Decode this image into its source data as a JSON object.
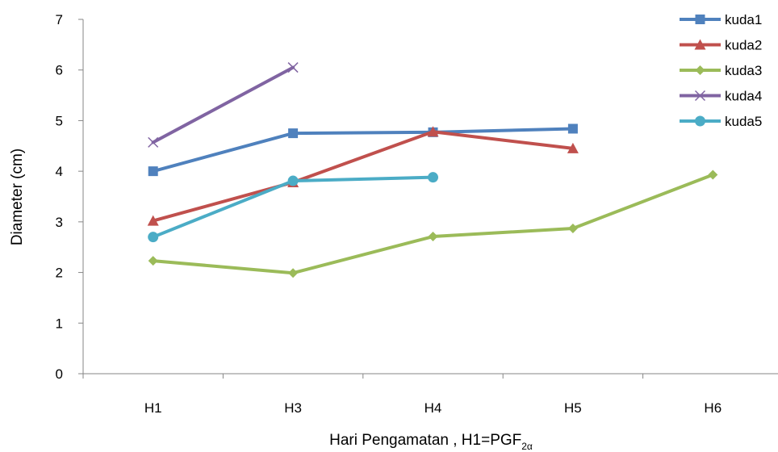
{
  "chart_data": {
    "type": "line",
    "categories": [
      "H1",
      "H3",
      "H4",
      "H5",
      "H6"
    ],
    "ylim": [
      0,
      7
    ],
    "yticks": [
      0,
      1,
      2,
      3,
      4,
      5,
      6,
      7
    ],
    "ylabel": "Diameter  (cm)",
    "xlabel": "Hari Pengamatan ,  H1=PGF",
    "xlabel_sub": "2α",
    "grid": false,
    "legend_position": "right",
    "series": [
      {
        "name": "kuda1",
        "color": "#4F81BD",
        "marker": "square",
        "values": [
          4.0,
          4.75,
          4.77,
          4.84,
          null
        ]
      },
      {
        "name": "kuda2",
        "color": "#C0504D",
        "marker": "triangle",
        "values": [
          3.02,
          3.78,
          4.78,
          4.45,
          null
        ]
      },
      {
        "name": "kuda3",
        "color": "#9BBB59",
        "marker": "diamond",
        "values": [
          2.23,
          1.99,
          2.71,
          2.87,
          3.93
        ]
      },
      {
        "name": "kuda4",
        "color": "#8064A2",
        "marker": "x",
        "values": [
          4.57,
          6.05,
          null,
          null,
          null
        ]
      },
      {
        "name": "kuda5",
        "color": "#4BACC6",
        "marker": "circle",
        "values": [
          2.7,
          3.81,
          3.88,
          null,
          null
        ]
      }
    ]
  }
}
